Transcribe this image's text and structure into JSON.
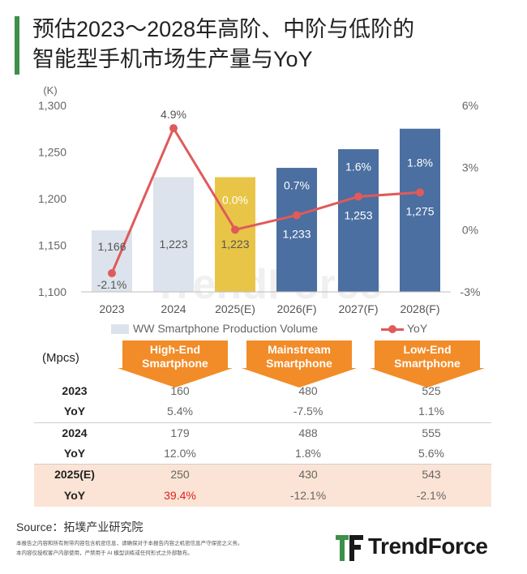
{
  "title": {
    "line1": "预估2023～2028年高阶、中阶与低阶的",
    "line2": "智能型手机市场生产量与YoY"
  },
  "watermark": "TrendForce",
  "chart_data": {
    "type": "bar+line",
    "categories": [
      "2023",
      "2024",
      "2025(E)",
      "2026(F)",
      "2027(F)",
      "2028(F)"
    ],
    "series": [
      {
        "name": "WW Smartphone Production Volume",
        "type": "bar",
        "axis": "left",
        "values": [
          1166,
          1223,
          1223,
          1233,
          1253,
          1275
        ],
        "labels": [
          "1,166",
          "1,223",
          "1,223",
          "1,233",
          "1,253",
          "1,275"
        ],
        "colors": [
          "#dde3ec",
          "#dde3ec",
          "#e8c547",
          "#4a6fa0",
          "#4a6fa0",
          "#4a6fa0"
        ]
      },
      {
        "name": "YoY",
        "type": "line",
        "axis": "right",
        "values": [
          -2.1,
          4.9,
          0.0,
          0.7,
          1.6,
          1.8
        ],
        "labels": [
          "-2.1%",
          "4.9%",
          "0.0%",
          "0.7%",
          "1.6%",
          "1.8%"
        ],
        "color": "#e05a5a"
      }
    ],
    "y_left": {
      "unit": "(K)",
      "min": 1100,
      "max": 1300,
      "ticks": [
        1100,
        1150,
        1200,
        1250,
        1300
      ],
      "tick_labels": [
        "1,100",
        "1,150",
        "1,200",
        "1,250",
        "1,300"
      ]
    },
    "y_right": {
      "min": -3,
      "max": 6,
      "ticks": [
        -3,
        0,
        3,
        6
      ],
      "tick_labels": [
        "-3%",
        "0%",
        "3%",
        "6%"
      ]
    },
    "legend": {
      "position": "bottom",
      "bar_label": "WW Smartphone Production Volume",
      "line_label": "YoY"
    }
  },
  "table": {
    "unit": "(Mpcs)",
    "headers": [
      {
        "line1": "High-End",
        "line2": "Smartphone"
      },
      {
        "line1": "Mainstream",
        "line2": "Smartphone"
      },
      {
        "line1": "Low-End",
        "line2": "Smartphone"
      }
    ],
    "rows": [
      {
        "label": "2023",
        "values": [
          "160",
          "480",
          "525"
        ]
      },
      {
        "label": "YoY",
        "values": [
          "5.4%",
          "-7.5%",
          "1.1%"
        ]
      },
      {
        "label": "2024",
        "values": [
          "179",
          "488",
          "555"
        ]
      },
      {
        "label": "YoY",
        "values": [
          "12.0%",
          "1.8%",
          "5.6%"
        ]
      },
      {
        "label": "2025(E)",
        "values": [
          "250",
          "430",
          "543"
        ]
      },
      {
        "label": "YoY",
        "values": [
          "39.4%",
          "-12.1%",
          "-2.1%"
        ]
      }
    ]
  },
  "source": "Source：拓墣产业研究院",
  "disclaimer": [
    "本报告之内容和所有附带内容包含机密信息，请确保对于本报告内容之机密信息严守保密之义务。",
    "本内容仅授权客户内部使用，严禁用于 AI 模型训练或任何形式之外部散布。"
  ],
  "logo": {
    "name": "TrendForce"
  },
  "colors": {
    "accent_green": "#3d8f4a",
    "header_orange": "#f28c28",
    "highlight_row": "#fbe4d5",
    "red_text": "#e02020"
  }
}
